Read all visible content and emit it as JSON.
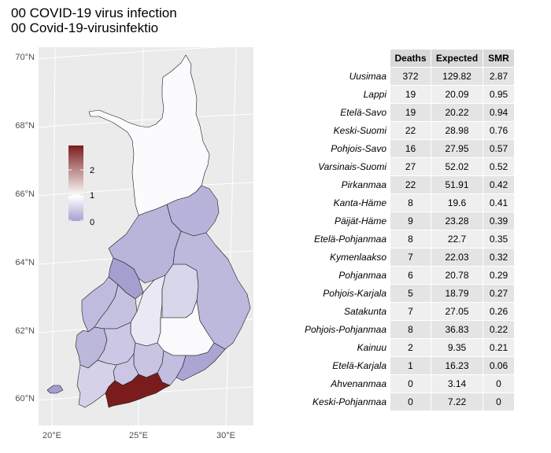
{
  "title_line1": "00 COVID-19 virus infection",
  "title_line2": "00 Covid-19-virusinfektio",
  "chart_data": [
    {
      "type": "map",
      "lat_labels": [
        "70°N",
        "68°N",
        "66°N",
        "64°N",
        "62°N",
        "60°N"
      ],
      "lon_labels": [
        "20°E",
        "25°E",
        "30°E"
      ],
      "legend": {
        "ticks": [
          "2",
          "1",
          "0"
        ],
        "low_color": "#a59fd0",
        "mid_color": "#ffffff",
        "high_color": "#7b1c1c"
      },
      "regions": [
        {
          "name": "Lappi",
          "smr": 0.95
        },
        {
          "name": "Kainuu",
          "smr": 0.21
        },
        {
          "name": "Pohjois-Pohjanmaa",
          "smr": 0.22
        },
        {
          "name": "Keski-Pohjanmaa",
          "smr": 0
        },
        {
          "name": "Pohjanmaa",
          "smr": 0.29
        },
        {
          "name": "Etelä-Pohjanmaa",
          "smr": 0.35
        },
        {
          "name": "Keski-Suomi",
          "smr": 0.76
        },
        {
          "name": "Pohjois-Savo",
          "smr": 0.57
        },
        {
          "name": "Pohjois-Karjala",
          "smr": 0.27
        },
        {
          "name": "Etelä-Savo",
          "smr": 0.94
        },
        {
          "name": "Satakunta",
          "smr": 0.26
        },
        {
          "name": "Pirkanmaa",
          "smr": 0.42
        },
        {
          "name": "Päijät-Häme",
          "smr": 0.39
        },
        {
          "name": "Kanta-Häme",
          "smr": 0.41
        },
        {
          "name": "Varsinais-Suomi",
          "smr": 0.52
        },
        {
          "name": "Kymenlaakso",
          "smr": 0.32
        },
        {
          "name": "Etelä-Karjala",
          "smr": 0.06
        },
        {
          "name": "Uusimaa",
          "smr": 2.87
        },
        {
          "name": "Ahvenanmaa",
          "smr": 0
        }
      ]
    },
    {
      "type": "table",
      "columns": [
        "Deaths",
        "Expected",
        "SMR"
      ],
      "rows": [
        {
          "region": "Uusimaa",
          "deaths": "372",
          "expected": "129.82",
          "smr": "2.87"
        },
        {
          "region": "Lappi",
          "deaths": "19",
          "expected": "20.09",
          "smr": "0.95"
        },
        {
          "region": "Etelä-Savo",
          "deaths": "19",
          "expected": "20.22",
          "smr": "0.94"
        },
        {
          "region": "Keski-Suomi",
          "deaths": "22",
          "expected": "28.98",
          "smr": "0.76"
        },
        {
          "region": "Pohjois-Savo",
          "deaths": "16",
          "expected": "27.95",
          "smr": "0.57"
        },
        {
          "region": "Varsinais-Suomi",
          "deaths": "27",
          "expected": "52.02",
          "smr": "0.52"
        },
        {
          "region": "Pirkanmaa",
          "deaths": "22",
          "expected": "51.91",
          "smr": "0.42"
        },
        {
          "region": "Kanta-Häme",
          "deaths": "8",
          "expected": "19.6",
          "smr": "0.41"
        },
        {
          "region": "Päijät-Häme",
          "deaths": "9",
          "expected": "23.28",
          "smr": "0.39"
        },
        {
          "region": "Etelä-Pohjanmaa",
          "deaths": "8",
          "expected": "22.7",
          "smr": "0.35"
        },
        {
          "region": "Kymenlaakso",
          "deaths": "7",
          "expected": "22.03",
          "smr": "0.32"
        },
        {
          "region": "Pohjanmaa",
          "deaths": "6",
          "expected": "20.78",
          "smr": "0.29"
        },
        {
          "region": "Pohjois-Karjala",
          "deaths": "5",
          "expected": "18.79",
          "smr": "0.27"
        },
        {
          "region": "Satakunta",
          "deaths": "7",
          "expected": "27.05",
          "smr": "0.26"
        },
        {
          "region": "Pohjois-Pohjanmaa",
          "deaths": "8",
          "expected": "36.83",
          "smr": "0.22"
        },
        {
          "region": "Kainuu",
          "deaths": "2",
          "expected": "9.35",
          "smr": "0.21"
        },
        {
          "region": "Etelä-Karjala",
          "deaths": "1",
          "expected": "16.23",
          "smr": "0.06"
        },
        {
          "region": "Ahvenanmaa",
          "deaths": "0",
          "expected": "3.14",
          "smr": "0"
        },
        {
          "region": "Keski-Pohjanmaa",
          "deaths": "0",
          "expected": "7.22",
          "smr": "0"
        }
      ]
    }
  ]
}
